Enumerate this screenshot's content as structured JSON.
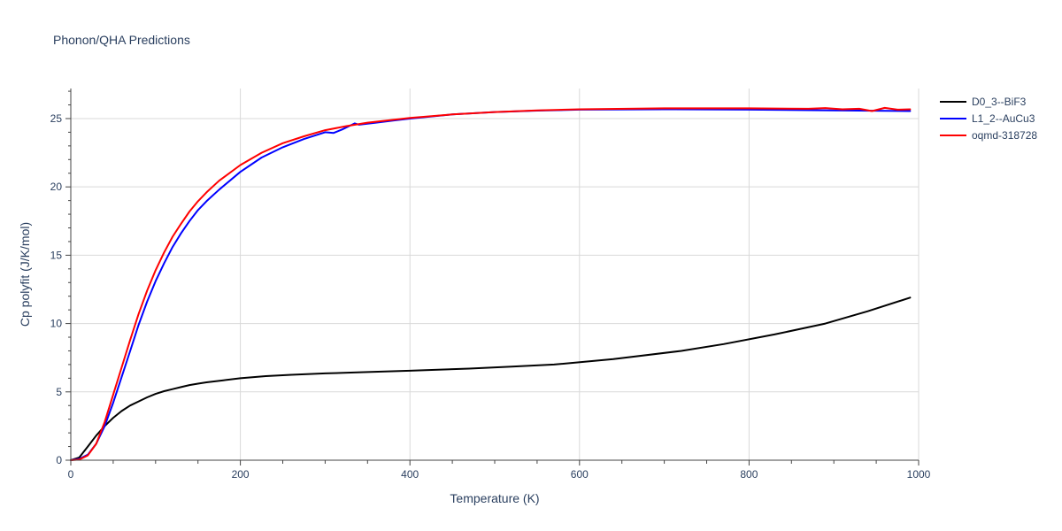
{
  "chart_data": {
    "type": "line",
    "title": "Phonon/QHA Predictions",
    "xlabel": "Temperature (K)",
    "ylabel": "Cp polyfit (J/K/mol)",
    "xlim": [
      0,
      1000
    ],
    "ylim": [
      0,
      27.2
    ],
    "xticks": [
      0,
      200,
      400,
      600,
      800,
      1000
    ],
    "yticks": [
      0,
      5,
      10,
      15,
      20,
      25
    ],
    "grid": true,
    "legend_position": "top-right",
    "series": [
      {
        "name": "D0_3--BiF3",
        "color": "#000000",
        "x": [
          0,
          10,
          20,
          30,
          40,
          50,
          60,
          70,
          80,
          90,
          100,
          110,
          120,
          130,
          140,
          150,
          160,
          180,
          200,
          230,
          260,
          300,
          350,
          400,
          470,
          520,
          570,
          640,
          720,
          770,
          830,
          890,
          940,
          990
        ],
        "y": [
          0,
          0.2,
          1.0,
          1.8,
          2.5,
          3.1,
          3.6,
          4.0,
          4.3,
          4.6,
          4.85,
          5.05,
          5.2,
          5.35,
          5.5,
          5.6,
          5.7,
          5.85,
          6.0,
          6.15,
          6.25,
          6.35,
          6.45,
          6.55,
          6.7,
          6.85,
          7.0,
          7.4,
          8.0,
          8.5,
          9.2,
          10.0,
          10.9,
          11.9
        ]
      },
      {
        "name": "L1_2--AuCu3",
        "color": "#0000ff",
        "x": [
          0,
          10,
          20,
          30,
          40,
          50,
          60,
          70,
          80,
          90,
          100,
          110,
          120,
          130,
          140,
          150,
          160,
          175,
          200,
          225,
          250,
          275,
          300,
          310,
          320,
          335,
          340,
          360,
          380,
          400,
          450,
          500,
          550,
          600,
          700,
          800,
          900,
          990
        ],
        "y": [
          0,
          0.1,
          0.4,
          1.2,
          2.5,
          4.2,
          6.1,
          8.0,
          9.9,
          11.6,
          13.1,
          14.4,
          15.6,
          16.6,
          17.5,
          18.3,
          18.95,
          19.8,
          21.1,
          22.15,
          22.9,
          23.5,
          24.0,
          23.95,
          24.2,
          24.65,
          24.55,
          24.7,
          24.85,
          25.0,
          25.3,
          25.48,
          25.58,
          25.65,
          25.68,
          25.65,
          25.6,
          25.55
        ]
      },
      {
        "name": "oqmd-318728",
        "color": "#ff0000",
        "x": [
          0,
          10,
          20,
          30,
          40,
          50,
          60,
          70,
          80,
          90,
          100,
          110,
          120,
          130,
          140,
          150,
          160,
          175,
          200,
          225,
          250,
          275,
          300,
          325,
          350,
          400,
          450,
          500,
          550,
          600,
          700,
          800,
          870,
          890,
          910,
          930,
          945,
          960,
          975,
          990
        ],
        "y": [
          0,
          0.05,
          0.35,
          1.2,
          2.8,
          4.8,
          6.8,
          8.8,
          10.7,
          12.4,
          13.9,
          15.2,
          16.35,
          17.3,
          18.2,
          18.95,
          19.6,
          20.45,
          21.6,
          22.5,
          23.2,
          23.7,
          24.15,
          24.45,
          24.7,
          25.05,
          25.3,
          25.48,
          25.6,
          25.68,
          25.75,
          25.75,
          25.72,
          25.77,
          25.68,
          25.72,
          25.55,
          25.78,
          25.65,
          25.68
        ]
      }
    ]
  }
}
